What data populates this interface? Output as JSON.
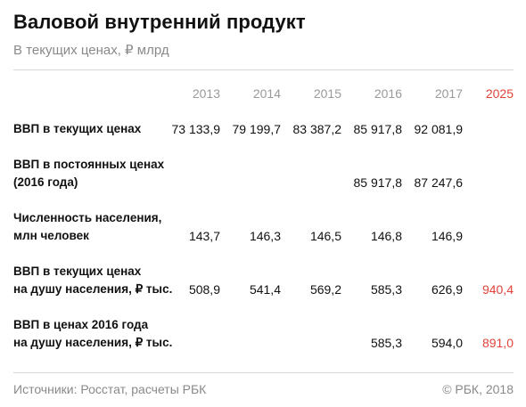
{
  "title": "Валовой внутренний продукт",
  "subtitle": "В текущих ценах, ₽ млрд",
  "footer": {
    "source": "Источники: Росстат, расчеты РБК",
    "copyright": "© РБК, 2018"
  },
  "colors": {
    "highlight": "#e0433a",
    "muted": "#9a9a9a",
    "text": "#111111"
  },
  "chart_data": {
    "type": "table",
    "title": "Валовой внутренний продукт",
    "subtitle": "В текущих ценах, ₽ млрд",
    "columns": [
      "2013",
      "2014",
      "2015",
      "2016",
      "2017",
      "2025"
    ],
    "highlight_column": "2025",
    "rows": [
      {
        "label_lines": [
          "ВВП в текущих ценах"
        ],
        "values": [
          "73 133,9",
          "79 199,7",
          "83 387,2",
          "85 917,8",
          "92 081,9",
          ""
        ]
      },
      {
        "label_lines": [
          "ВВП в постоянных ценах",
          "(2016 года)"
        ],
        "values": [
          "",
          "",
          "",
          "85 917,8",
          "87 247,6",
          ""
        ]
      },
      {
        "label_lines": [
          "Численность населения,",
          "млн человек"
        ],
        "values": [
          "143,7",
          "146,3",
          "146,5",
          "146,8",
          "146,9",
          ""
        ]
      },
      {
        "label_lines": [
          "ВВП в текущих ценах",
          "на душу населения, ₽ тыс."
        ],
        "values": [
          "508,9",
          "541,4",
          "569,2",
          "585,3",
          "626,9",
          "940,4"
        ]
      },
      {
        "label_lines": [
          "ВВП в ценах 2016 года",
          "на душу населения, ₽ тыс."
        ],
        "values": [
          "",
          "",
          "",
          "585,3",
          "594,0",
          "891,0"
        ]
      }
    ]
  }
}
